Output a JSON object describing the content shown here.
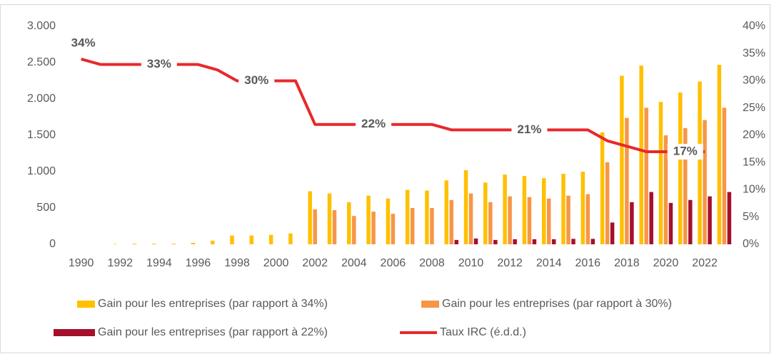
{
  "chart_data": {
    "type": "bar-line",
    "categories": [
      "1990",
      null,
      "1992",
      null,
      "1994",
      null,
      "1996",
      null,
      "1998",
      null,
      "2000",
      null,
      "2002",
      null,
      "2004",
      null,
      "2006",
      null,
      "2008",
      null,
      "2010",
      null,
      "2012",
      null,
      "2014",
      null,
      "2016",
      null,
      "2018",
      null,
      "2020",
      null,
      "2022",
      null
    ],
    "series": [
      {
        "name": "Gain pour les entreprises (par rapport à 34%)",
        "type": "bar",
        "color": "#FFC000",
        "values": [
          0,
          0,
          5,
          10,
          10,
          10,
          20,
          50,
          120,
          120,
          130,
          150,
          730,
          700,
          580,
          670,
          630,
          750,
          740,
          880,
          1020,
          850,
          960,
          940,
          910,
          970,
          1000,
          1540,
          2320,
          2460,
          1960,
          2090,
          2240,
          2470
        ]
      },
      {
        "name": "Gain pour les entreprises (par rapport à 30%)",
        "type": "bar",
        "color": "#F79646",
        "values": [
          0,
          0,
          0,
          0,
          0,
          0,
          0,
          0,
          0,
          0,
          0,
          0,
          480,
          470,
          390,
          450,
          420,
          500,
          500,
          610,
          700,
          580,
          660,
          650,
          630,
          670,
          690,
          1130,
          1740,
          1880,
          1500,
          1600,
          1710,
          1880
        ]
      },
      {
        "name": "Gain pour les entreprises (par rapport à 22%)",
        "type": "bar",
        "color": "#A50F2D",
        "values": [
          0,
          0,
          0,
          0,
          0,
          0,
          0,
          0,
          0,
          0,
          0,
          0,
          0,
          0,
          0,
          0,
          0,
          0,
          0,
          60,
          80,
          60,
          70,
          70,
          70,
          75,
          75,
          300,
          580,
          720,
          570,
          610,
          660,
          720
        ]
      },
      {
        "name": "Taux IRC (é.d.d.)",
        "type": "line",
        "axis": "y2",
        "color": "#E8282B",
        "values": [
          34,
          33,
          33,
          33,
          33,
          33,
          33,
          32,
          30,
          30,
          30,
          30,
          22,
          22,
          22,
          22,
          22,
          22,
          22,
          21,
          21,
          21,
          21,
          21,
          21,
          21,
          21,
          19,
          18,
          17,
          17,
          17,
          17,
          null
        ],
        "value_labels": [
          "34%",
          null,
          null,
          null,
          "33%",
          null,
          null,
          null,
          null,
          "30%",
          null,
          null,
          null,
          null,
          null,
          "22%",
          null,
          null,
          null,
          null,
          null,
          null,
          null,
          "21%",
          null,
          null,
          null,
          null,
          null,
          null,
          null,
          "17%",
          null,
          null
        ]
      }
    ],
    "ylim": [
      0,
      3000
    ],
    "yticks": [
      0,
      500,
      {
        "value": 1000,
        "label": "1.000"
      },
      {
        "value": 1500,
        "label": "1.500"
      },
      {
        "value": 2000,
        "label": "2.000"
      },
      {
        "value": 2500,
        "label": "2.500"
      },
      {
        "value": 3000,
        "label": "3.000"
      }
    ],
    "y2lim": [
      0,
      40
    ],
    "y2ticks": [
      {
        "value": 0,
        "label": "0%"
      },
      {
        "value": 5,
        "label": "5%"
      },
      {
        "value": 10,
        "label": "10%"
      },
      {
        "value": 15,
        "label": "15%"
      },
      {
        "value": 20,
        "label": "20%"
      },
      {
        "value": 25,
        "label": "25%"
      },
      {
        "value": 30,
        "label": "30%"
      },
      {
        "value": 35,
        "label": "35%"
      },
      {
        "value": 40,
        "label": "40%"
      }
    ],
    "grid": false,
    "legend": "bottom"
  }
}
